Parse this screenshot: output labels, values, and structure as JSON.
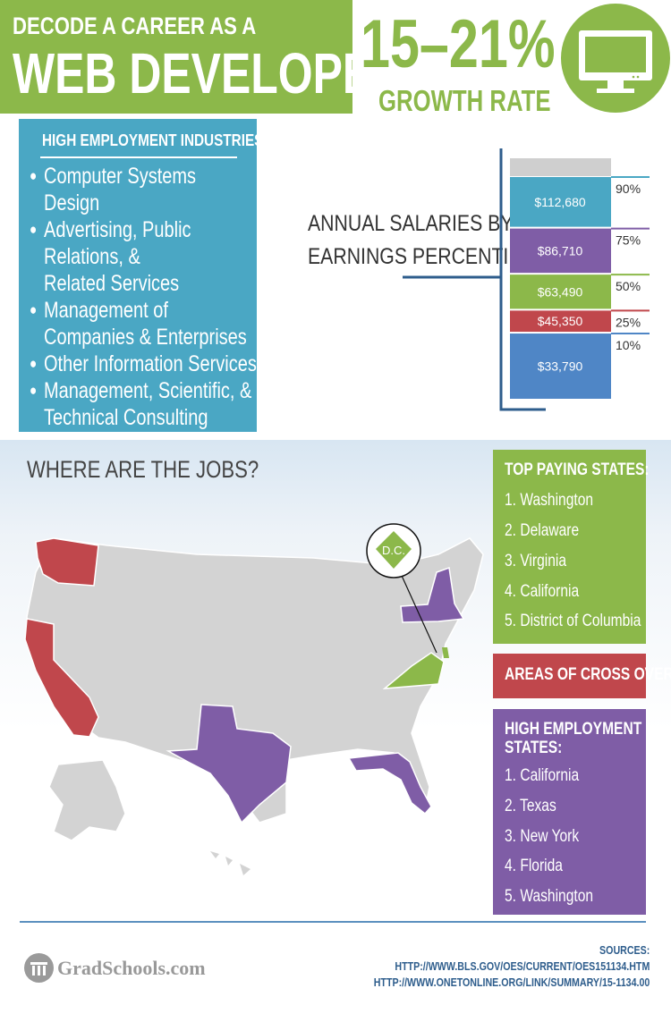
{
  "header": {
    "title_small": "DECODE A CAREER AS A",
    "title_big": "WEB DEVELOPER",
    "growth_pct": "15–21%",
    "growth_label": "GROWTH RATE",
    "icon": "monitor-icon"
  },
  "industries": {
    "title": "HIGH EMPLOYMENT INDUSTRIES",
    "items": [
      "Computer Systems Design",
      "Advertising, Public Relations, & Related Services",
      "Management of Companies & Enterprises",
      "Other Information Services",
      "Management, Scientific, & Technical Consulting"
    ]
  },
  "salaries": {
    "label_line1": "ANNUAL SALARIES BY",
    "label_line2": "EARNINGS PERCENTILE"
  },
  "chart_data": {
    "type": "bar",
    "title": "ANNUAL SALARIES BY EARNINGS PERCENTILE",
    "categories": [
      "90%",
      "75%",
      "50%",
      "25%",
      "10%"
    ],
    "values": [
      112680,
      86710,
      63490,
      45350,
      33790
    ],
    "value_labels": [
      "$112,680",
      "$86,710",
      "$63,490",
      "$45,350",
      "$33,790"
    ],
    "colors": [
      "#4aa7c4",
      "#7f5da6",
      "#8cb84a",
      "#c0474c",
      "#4f86c6"
    ]
  },
  "map": {
    "title": "WHERE ARE THE JOBS?",
    "dc_label": "D.C.",
    "colors": {
      "base": "#d3d3d3",
      "top_paying": "#8cb84a",
      "high_employment": "#7f5da6",
      "cross_over": "#c0474c"
    }
  },
  "top_paying": {
    "title": "TOP PAYING STATES:",
    "items": [
      "1. Washington",
      "2. Delaware",
      "3. Virginia",
      "4. California",
      "5. District of Columbia"
    ]
  },
  "cross_over": {
    "label": "AREAS OF CROSS OVER"
  },
  "high_employment": {
    "title_line1": "HIGH EMPLOYMENT",
    "title_line2": "STATES:",
    "items": [
      "1. California",
      "2. Texas",
      "3. New York",
      "4. Florida",
      "5. Washington"
    ]
  },
  "footer": {
    "logo": "GradSchools.com",
    "sources_label": "SOURCES:",
    "source_1": "HTTP://WWW.BLS.GOV/OES/CURRENT/OES151134.HTM",
    "source_2": "HTTP://WWW.ONETONLINE.ORG/LINK/SUMMARY/15-1134.00"
  }
}
